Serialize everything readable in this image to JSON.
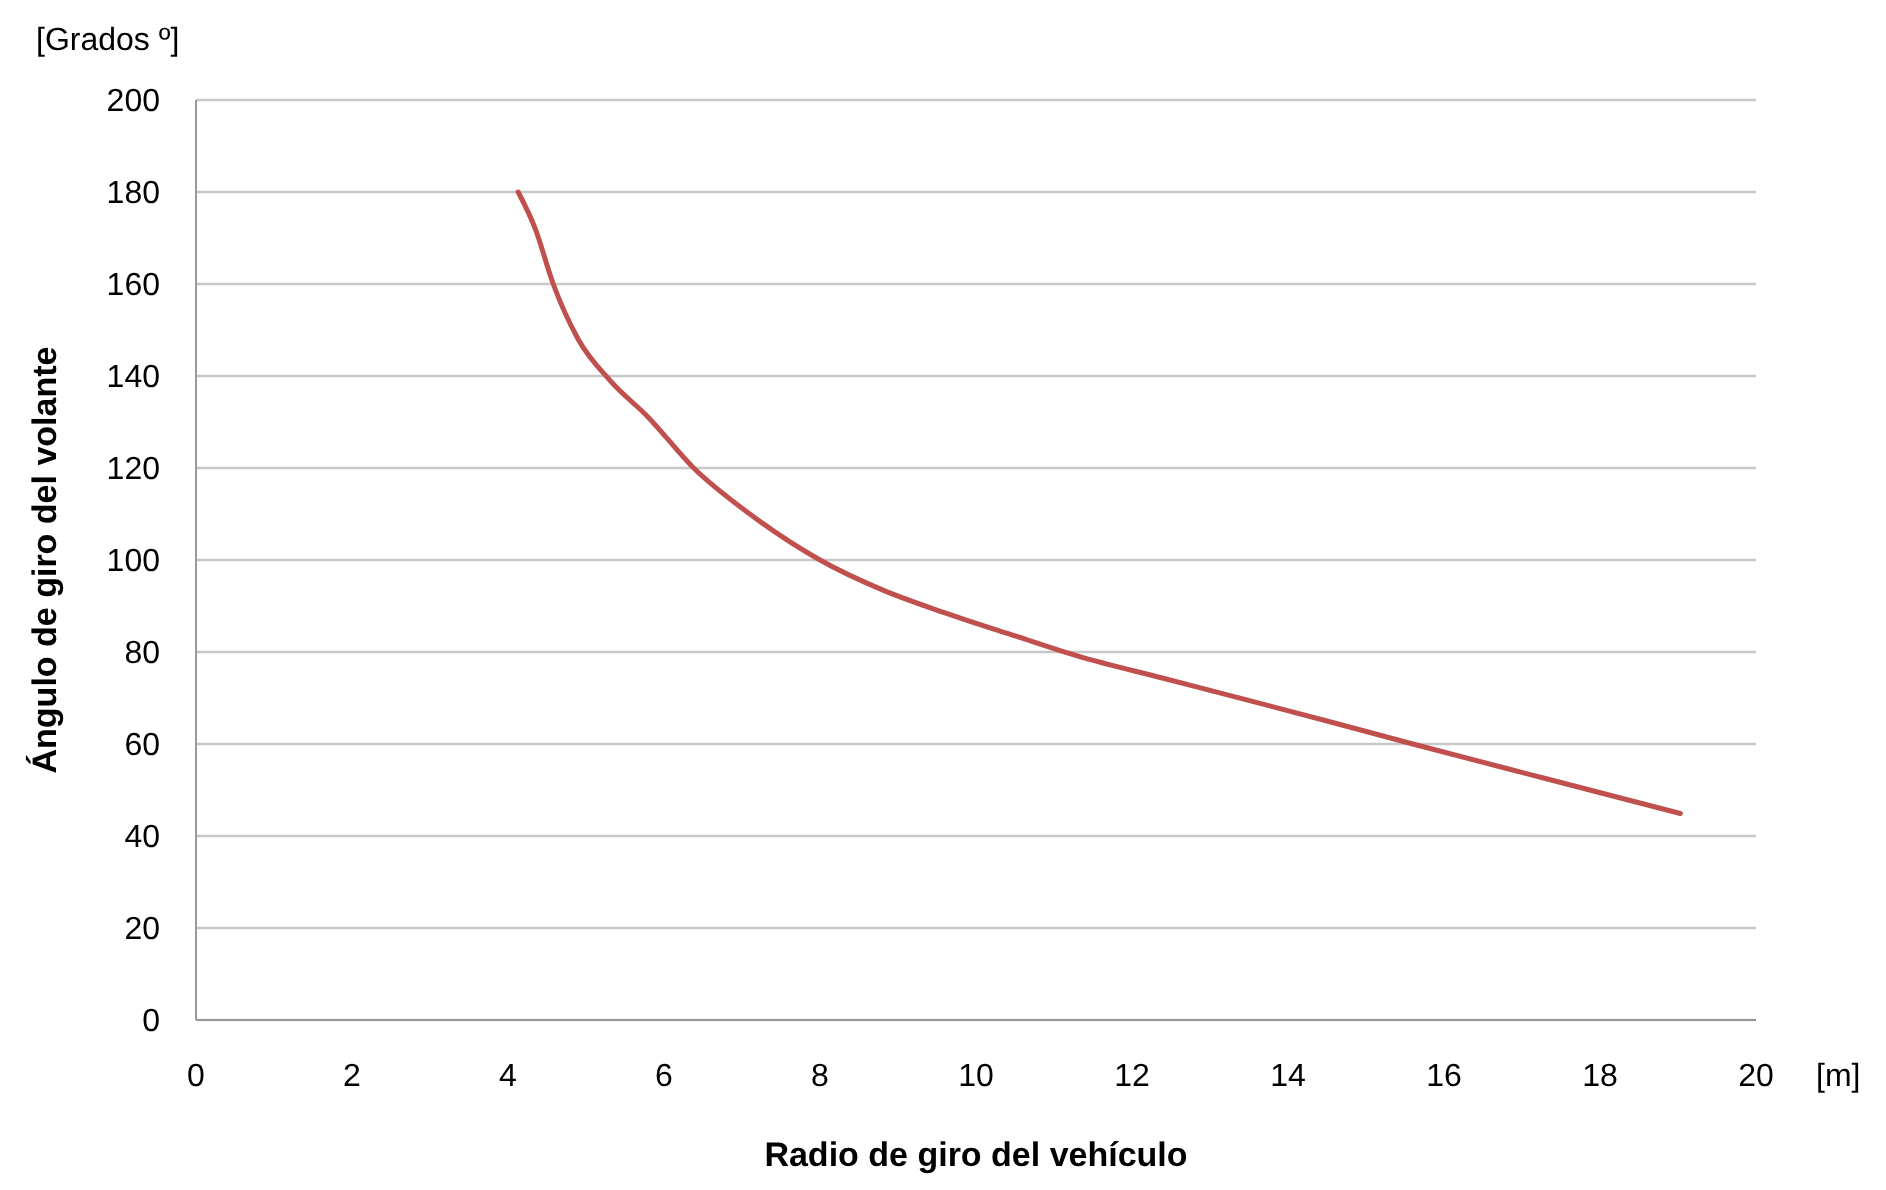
{
  "chart_data": {
    "type": "line",
    "xlabel": "Radio de giro del vehículo",
    "ylabel": "Ángulo de giro del volante",
    "annotations": [
      "[Grados º]",
      "[m]"
    ],
    "series": [
      {
        "color": "#c0504d",
        "x": [
          4.13,
          4.35,
          4.58,
          4.9,
          5.31,
          5.8,
          6.38,
          7.1,
          8.0,
          8.8,
          9.62,
          10.5,
          11.33,
          12.4,
          13.47,
          14.5,
          15.6,
          17.3,
          19.03
        ],
        "values": [
          180,
          172,
          160,
          148,
          139,
          131,
          120,
          110,
          100,
          93.5,
          88.4,
          83.5,
          79,
          74.3,
          69.6,
          65,
          60,
          52.5,
          44.9
        ]
      }
    ],
    "xlim": [
      0,
      20
    ],
    "xticks": [
      0,
      2,
      4,
      6,
      8,
      10,
      12,
      14,
      16,
      18,
      20
    ],
    "ylim": [
      0,
      200
    ],
    "yticks": [
      0,
      20,
      40,
      60,
      80,
      100,
      120,
      140,
      160,
      180,
      200
    ],
    "grid": "y",
    "marker": "none",
    "line_style": "solid"
  }
}
